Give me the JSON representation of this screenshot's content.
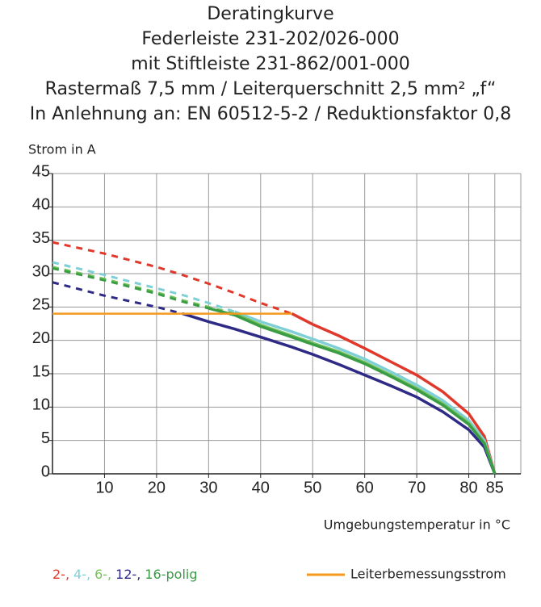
{
  "chart_data": {
    "type": "line",
    "title": [
      "Deratingkurve",
      "Federleiste 231-202/026-000",
      "mit Stiftleiste 231-862/001-000",
      "Rastermaß 7,5 mm / Leiterquerschnitt 2,5 mm² „f“",
      "In Anlehnung an: EN 60512-5-2 / Reduktionsfaktor 0,8"
    ],
    "y_label": "Strom in A",
    "x_label": "Umgebungstemperatur in °C",
    "x": [
      0,
      10,
      20,
      25,
      30,
      35,
      40,
      46,
      50,
      55,
      60,
      65,
      70,
      75,
      80,
      83,
      85
    ],
    "xlim": [
      0,
      90
    ],
    "xticks": [
      10,
      20,
      30,
      40,
      50,
      60,
      70,
      80,
      85
    ],
    "ylim": [
      0,
      45
    ],
    "yticks": [
      0,
      5,
      10,
      15,
      20,
      25,
      30,
      35,
      40,
      45
    ],
    "grid": true,
    "series": [
      {
        "name": "2-,",
        "color": "#e0392c",
        "values": [
          34.7,
          33,
          31,
          29.8,
          28.5,
          27.1,
          25.6,
          24,
          22.4,
          20.7,
          18.8,
          16.8,
          14.8,
          12.3,
          9.0,
          5.6,
          0
        ]
      },
      {
        "name": "4-,",
        "color": "#7fd0d6",
        "values": [
          31.7,
          29.8,
          27.8,
          26.8,
          25.6,
          24.3,
          22.8,
          21.3,
          20.2,
          18.8,
          17.2,
          15.3,
          13.3,
          11,
          8,
          5,
          0
        ]
      },
      {
        "name": "6-,",
        "color": "#74c25a",
        "values": [
          31,
          29.2,
          27.2,
          26,
          25,
          24,
          22.3,
          20.7,
          19.6,
          18.3,
          16.7,
          14.8,
          12.8,
          10.5,
          7.6,
          4.6,
          0
        ]
      },
      {
        "name": "12-,",
        "color": "#2e2a86",
        "values": [
          28.7,
          26.7,
          25,
          24,
          22.8,
          21.7,
          20.5,
          19,
          17.9,
          16.4,
          14.8,
          13.2,
          11.5,
          9.3,
          6.6,
          4,
          0
        ]
      },
      {
        "name": "16-polig",
        "color": "#3a9c45",
        "values": [
          30.8,
          29,
          27,
          25.8,
          24.8,
          23.8,
          22.1,
          20.5,
          19.4,
          18.1,
          16.5,
          14.6,
          12.6,
          10.3,
          7.4,
          4.5,
          0
        ]
      }
    ],
    "rated": {
      "name": "Leiterbemessungsstrom",
      "color": "#f39a1e",
      "values": [
        24,
        24,
        24,
        24,
        24,
        24,
        24,
        24,
        null,
        null,
        null,
        null,
        null,
        null,
        null,
        null,
        null
      ]
    }
  }
}
